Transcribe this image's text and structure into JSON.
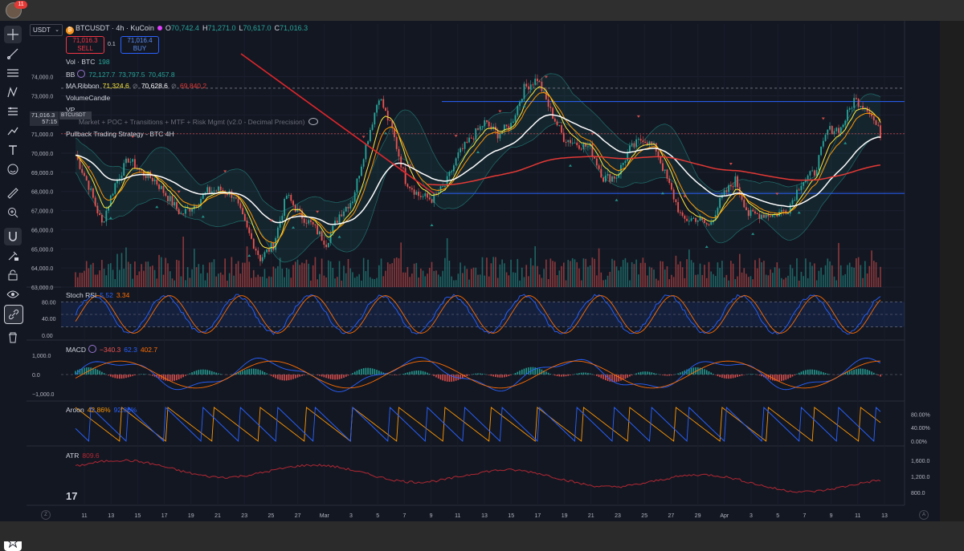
{
  "app": {
    "notification_count": "11"
  },
  "toolbar": {
    "icons": [
      "crosshair-icon",
      "trend-line-icon",
      "fib-icon",
      "pattern-icon",
      "measure-lines-icon",
      "brush-icon",
      "text-icon",
      "emoji-icon",
      "ruler-icon",
      "zoom-in-icon",
      "magnet-icon",
      "lock-draw-icon",
      "lock-icon",
      "eye-icon",
      "link-icon",
      "trash-icon",
      "star-icon"
    ]
  },
  "header": {
    "currency": "USDT",
    "title": "BTCUSDT · 4h · KuCoin",
    "ohlc": [
      {
        "k": "O",
        "v": "70,742.4"
      },
      {
        "k": "H",
        "v": "71,271.0"
      },
      {
        "k": "L",
        "v": "70,617.0"
      },
      {
        "k": "C",
        "v": "71,016.3"
      }
    ],
    "sell_price": "71,016.3",
    "sell_label": "SELL",
    "buy_price": "71,016.4",
    "buy_label": "BUY",
    "spread": "0.1"
  },
  "legends": {
    "vol": {
      "name": "Vol · BTC",
      "value": "198"
    },
    "bb": {
      "name": "BB",
      "v1": "72,127.7",
      "v2": "73,797.5",
      "v3": "70,457.8"
    },
    "ma": {
      "name": "MA Ribbon",
      "v1": "71,324.6",
      "v2": "70,628.6",
      "v3": "69,840.2"
    },
    "volumecandle": "VolumeCandle",
    "vp": "VP",
    "market": "Market + POC + Transitions + MTF + Risk Mgmt (v2.0 - Decimal Precision)",
    "pullback": "Pullback Trading Strategy - BTC 4H"
  },
  "price_tags": {
    "current": "71,016.3",
    "countdown": "57:15",
    "symbol": "BTCUSDT"
  },
  "panes": {
    "stoch": {
      "name": "Stoch RSI",
      "k": "5.52",
      "d": "3.34"
    },
    "macd": {
      "name": "MACD",
      "hist": "−340.3",
      "macd": "62.3",
      "signal": "402.7"
    },
    "aroon": {
      "name": "Aroon",
      "up": "42.86%",
      "down": "92.86%"
    },
    "atr": {
      "name": "ATR",
      "value": "809.6"
    }
  },
  "colors": {
    "bull": "#26a69a",
    "bear": "#ef5350",
    "ma_fast": "#ffeb3b",
    "ma_mid": "#ff9800",
    "ma_slow": "#ffffff",
    "ma_long": "#e53935",
    "bb": "#26a69a",
    "trend": "#e0262b",
    "level": "#2962ff",
    "stoch_k": "#2962ff",
    "stoch_d": "#ff6d00",
    "aroon_up": "#ff9800",
    "aroon_down": "#2962ff",
    "atr": "#b22833"
  },
  "chart_data": {
    "type": "candlestick",
    "symbol": "BTCUSDT",
    "timeframe": "4h",
    "exchange": "KuCoin",
    "ylim": [
      63000,
      75200
    ],
    "y_ticks": [
      "74,000.0",
      "73,000.0",
      "72,000.0",
      "71,000.0",
      "70,000.0",
      "69,000.0",
      "68,000.0",
      "67,000.0",
      "66,000.0",
      "65,000.0",
      "64,000.0",
      "63,000.0"
    ],
    "y_tick_values": [
      74000,
      73000,
      72000,
      71000,
      70000,
      69000,
      68000,
      67000,
      66000,
      65000,
      64000,
      63000
    ],
    "x_tick_labels": [
      "11",
      "13",
      "15",
      "17",
      "19",
      "21",
      "23",
      "25",
      "27",
      "Mar",
      "3",
      "5",
      "7",
      "9",
      "11",
      "13",
      "15",
      "17",
      "19",
      "21",
      "23",
      "25",
      "27",
      "29",
      "Apr",
      "3",
      "5",
      "7",
      "9",
      "11",
      "13"
    ],
    "close_path_points": [
      [
        "Feb 10",
        69900
      ],
      [
        "Feb 11",
        68300
      ],
      [
        "Feb 12",
        66300
      ],
      [
        "Feb 13",
        68400
      ],
      [
        "Feb 14",
        69700
      ],
      [
        "Feb 15",
        69000
      ],
      [
        "Feb 16",
        68600
      ],
      [
        "Feb 17",
        67700
      ],
      [
        "Feb 18",
        66800
      ],
      [
        "Feb 19",
        67300
      ],
      [
        "Feb 20",
        68000
      ],
      [
        "Feb 21",
        68100
      ],
      [
        "Feb 22",
        67800
      ],
      [
        "Feb 23",
        66000
      ],
      [
        "Feb 24",
        64500
      ],
      [
        "Feb 25",
        65200
      ],
      [
        "Feb 26",
        67800
      ],
      [
        "Feb 27",
        66800
      ],
      [
        "Feb 28",
        66200
      ],
      [
        "Mar 1",
        65300
      ],
      [
        "Mar 2",
        66800
      ],
      [
        "Mar 3",
        67600
      ],
      [
        "Mar 4",
        70400
      ],
      [
        "Mar 5",
        73000
      ],
      [
        "Mar 6",
        71200
      ],
      [
        "Mar 7",
        68600
      ],
      [
        "Mar 8",
        67800
      ],
      [
        "Mar 9",
        67600
      ],
      [
        "Mar 10",
        68300
      ],
      [
        "Mar 11",
        69900
      ],
      [
        "Mar 12",
        70800
      ],
      [
        "Mar 13",
        71600
      ],
      [
        "Mar 14",
        71000
      ],
      [
        "Mar 15",
        71500
      ],
      [
        "Mar 16",
        73400
      ],
      [
        "Mar 17",
        73900
      ],
      [
        "Mar 18",
        72200
      ],
      [
        "Mar 19",
        70800
      ],
      [
        "Mar 20",
        70500
      ],
      [
        "Mar 21",
        70300
      ],
      [
        "Mar 22",
        68700
      ],
      [
        "Mar 23",
        68800
      ],
      [
        "Mar 24",
        70200
      ],
      [
        "Mar 25",
        70800
      ],
      [
        "Mar 26",
        70200
      ],
      [
        "Mar 27",
        68300
      ],
      [
        "Mar 28",
        66500
      ],
      [
        "Mar 29",
        66600
      ],
      [
        "Mar 30",
        66200
      ],
      [
        "Mar 31",
        67700
      ],
      [
        "Apr 1",
        68600
      ],
      [
        "Apr 2",
        66800
      ],
      [
        "Apr 3",
        66800
      ],
      [
        "Apr 4",
        66800
      ],
      [
        "Apr 5",
        67100
      ],
      [
        "Apr 6",
        68500
      ],
      [
        "Apr 7",
        69000
      ],
      [
        "Apr 8",
        71200
      ],
      [
        "Apr 9",
        71300
      ],
      [
        "Apr 10",
        72800
      ],
      [
        "Apr 11",
        72400
      ],
      [
        "Apr 12",
        71000
      ]
    ],
    "horizontal_levels": [
      72700,
      67900
    ],
    "last_close": 71016.3,
    "stoch_rsi": {
      "ylim": [
        0,
        100
      ],
      "ticks": [
        "80.00",
        "40.00",
        "0.00"
      ],
      "tick_values": [
        80,
        40,
        0
      ]
    },
    "macd": {
      "ticks": [
        "1,000.0",
        "0.0",
        "−1,000.0"
      ],
      "tick_values": [
        1000,
        0,
        -1000
      ]
    },
    "aroon": {
      "ticks": [
        "80.00%",
        "40.00%",
        "0.00%"
      ],
      "tick_values": [
        80,
        40,
        0
      ]
    },
    "atr": {
      "ticks": [
        "1,600.0",
        "1,200.0",
        "800.0"
      ],
      "tick_values": [
        1600,
        1200,
        800
      ]
    }
  }
}
